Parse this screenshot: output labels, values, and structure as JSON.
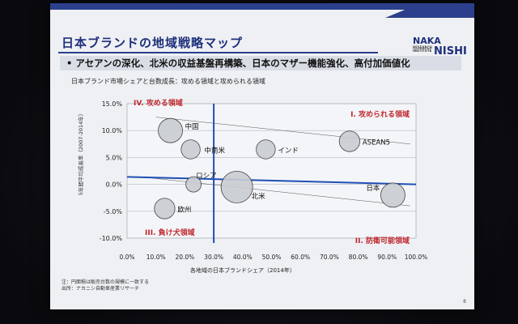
{
  "slide": {
    "title": "日本ブランドの地域戦略マップ",
    "logo": {
      "line1": "NAKA",
      "line2": "NISHI",
      "small": "RESEARCH INSTITUTE"
    },
    "bullet": "アセアンの深化、北米の収益基盤再構築、日本のマザー機能強化、高付加価値化",
    "chart_subtitle": "日本ブランド市場シェアと台数成長：攻める領域と攻められる領域",
    "note1": "注：円面積は販売台数の規模に一致する",
    "note2": "出所：ナカニシ自動車産業リサーチ",
    "page_number": "8"
  },
  "chart_data": {
    "type": "scatter",
    "title": "",
    "xlabel": "各地域の日本ブランドシェア（2014年）",
    "ylabel": "5年間平均成長率（2007-2014年）",
    "xlim": [
      0,
      100
    ],
    "ylim": [
      -10,
      15
    ],
    "x_ticks": [
      "0.0%",
      "10.0%",
      "20.0%",
      "30.0%",
      "40.0%",
      "50.0%",
      "60.0%",
      "70.0%",
      "80.0%",
      "90.0%",
      "100.0%"
    ],
    "y_ticks": [
      "15.0%",
      "10.0%",
      "5.0%",
      "0.0%",
      "-5.0%",
      "-10.0%"
    ],
    "divider_x": 30,
    "divider_y": 2,
    "quadrants": [
      {
        "label": "IV. 攻める領域",
        "pos": "top-left"
      },
      {
        "label": "I. 攻められる領域",
        "pos": "top-right"
      },
      {
        "label": "III. 負け犬領域",
        "pos": "bottom-left"
      },
      {
        "label": "II. 防衛可能領域",
        "pos": "bottom-right"
      }
    ],
    "points": [
      {
        "name": "中国",
        "x": 15,
        "y": 10,
        "size": 4
      },
      {
        "name": "中南米",
        "x": 22,
        "y": 6.5,
        "size": 2
      },
      {
        "name": "インド",
        "x": 48,
        "y": 6.5,
        "size": 2
      },
      {
        "name": "ASEAN5",
        "x": 77,
        "y": 8,
        "size": 2.5
      },
      {
        "name": "ロシア",
        "x": 23,
        "y": 0,
        "size": 1
      },
      {
        "name": "北米",
        "x": 38,
        "y": -0.5,
        "size": 8
      },
      {
        "name": "欧州",
        "x": 13,
        "y": -4.5,
        "size": 2.5
      },
      {
        "name": "日本",
        "x": 92,
        "y": -2,
        "size": 4
      }
    ]
  }
}
